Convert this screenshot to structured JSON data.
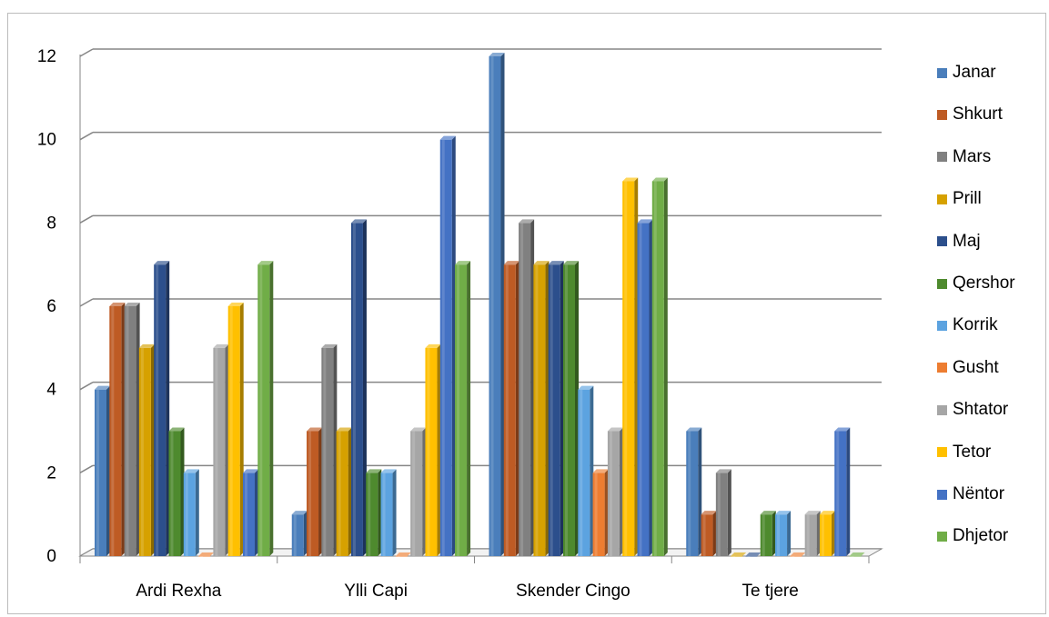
{
  "chart_data": {
    "type": "bar",
    "categories": [
      "Ardi Rexha",
      "Ylli Capi",
      "Skender Cingo",
      "Te tjere"
    ],
    "series": [
      {
        "name": "Janar",
        "color": "#4A7EBB",
        "values": [
          4,
          1,
          12,
          3
        ]
      },
      {
        "name": "Shkurt",
        "color": "#BE5B24",
        "values": [
          6,
          3,
          7,
          1
        ]
      },
      {
        "name": "Mars",
        "color": "#808080",
        "values": [
          6,
          5,
          8,
          2
        ]
      },
      {
        "name": "Prill",
        "color": "#D6A100",
        "values": [
          5,
          3,
          7,
          0
        ]
      },
      {
        "name": "Maj",
        "color": "#2C4F8C",
        "values": [
          7,
          8,
          7,
          0
        ]
      },
      {
        "name": "Qershor",
        "color": "#4E8A2E",
        "values": [
          3,
          2,
          7,
          1
        ]
      },
      {
        "name": "Korrik",
        "color": "#5CA3E0",
        "values": [
          2,
          2,
          4,
          1
        ]
      },
      {
        "name": "Gusht",
        "color": "#ED7D31",
        "values": [
          0,
          0,
          2,
          0
        ]
      },
      {
        "name": "Shtator",
        "color": "#A6A6A6",
        "values": [
          5,
          3,
          3,
          1
        ]
      },
      {
        "name": "Tetor",
        "color": "#FFC000",
        "values": [
          6,
          5,
          9,
          1
        ]
      },
      {
        "name": "Nëntor",
        "color": "#4472C4",
        "values": [
          2,
          10,
          8,
          3
        ]
      },
      {
        "name": "Dhjetor",
        "color": "#70AD47",
        "values": [
          7,
          7,
          9,
          0
        ]
      }
    ],
    "yticks": [
      "0",
      "2",
      "4",
      "6",
      "8",
      "10",
      "12"
    ],
    "ylim": [
      0,
      12
    ],
    "grid": true,
    "legend": "right",
    "title": "",
    "xlabel": "",
    "ylabel": ""
  }
}
